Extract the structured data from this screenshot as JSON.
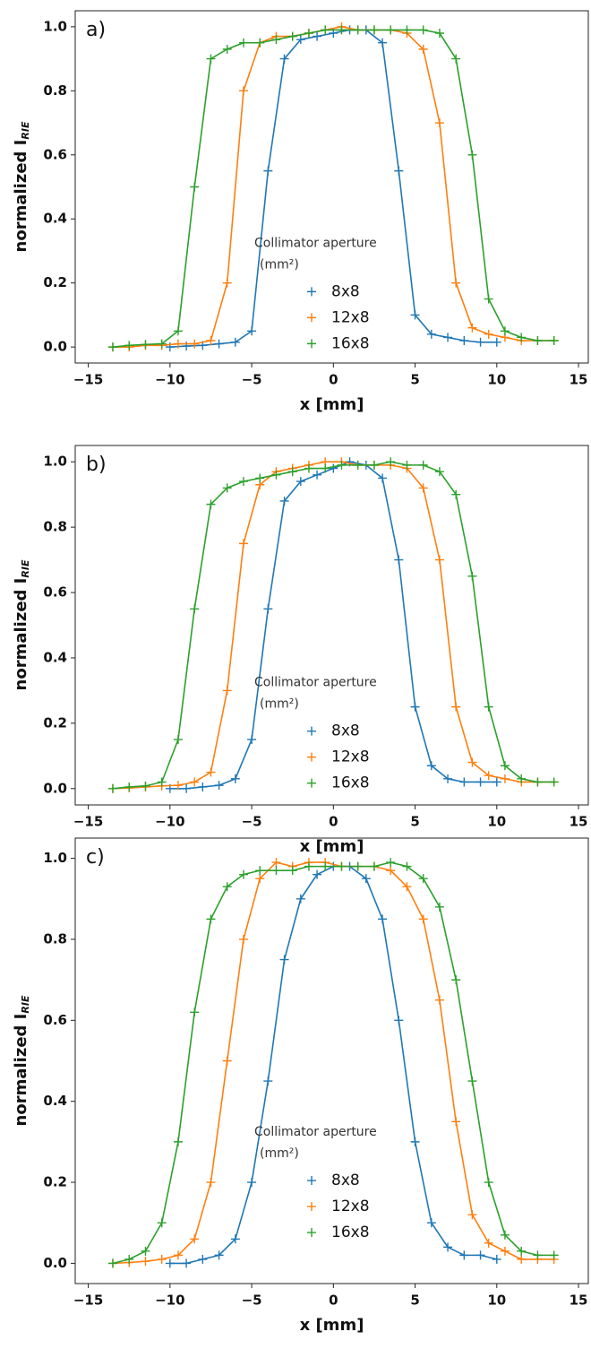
{
  "chart_data": [
    {
      "type": "line",
      "panel_label": "a)",
      "xlabel": "x [mm]",
      "ylabel": "normalized I",
      "ylabel_sub": "RIE",
      "legend_title": "Collimator aperture",
      "legend_unit": "(mm²)",
      "xlim": [
        -15.8,
        15.6
      ],
      "xticks": [
        {
          "value": -15,
          "label": "−15"
        },
        {
          "value": -10,
          "label": "−10"
        },
        {
          "value": -5,
          "label": "−5"
        },
        0,
        5,
        10,
        15
      ],
      "ylim": [
        -0.05,
        1.05
      ],
      "yticks": [
        {
          "value": 0,
          "label": "0.0"
        },
        {
          "value": 0.2,
          "label": "0.2"
        },
        {
          "value": 0.4,
          "label": "0.4"
        },
        {
          "value": 0.6,
          "label": "0.6"
        },
        {
          "value": 0.8,
          "label": "0.8"
        },
        {
          "value": 1,
          "label": "1.0"
        }
      ],
      "series": [
        {
          "name": "8x8",
          "color": "#1f77b4",
          "x": [
            -10,
            -9,
            -8,
            -7,
            -6,
            -5,
            -4,
            -3,
            -2,
            -1,
            0,
            1,
            2,
            3,
            4,
            5,
            6,
            7,
            8,
            9,
            10
          ],
          "values": [
            0,
            0.003,
            0.005,
            0.01,
            0.015,
            0.05,
            0.55,
            0.9,
            0.96,
            0.97,
            0.98,
            0.99,
            0.99,
            0.95,
            0.55,
            0.1,
            0.04,
            0.03,
            0.02,
            0.015,
            0.015
          ]
        },
        {
          "name": "12x8",
          "color": "#ff7f0e",
          "x": [
            -13.5,
            -12.5,
            -11.5,
            -10.5,
            -9.5,
            -8.5,
            -7.5,
            -6.5,
            -5.5,
            -4.5,
            -3.5,
            -2.5,
            -1.5,
            -0.5,
            0.5,
            1.5,
            2.5,
            3.5,
            4.5,
            5.5,
            6.5,
            7.5,
            8.5,
            9.5,
            10.5,
            11.5,
            12.5,
            13.5
          ],
          "values": [
            0,
            0,
            0.005,
            0.005,
            0.01,
            0.01,
            0.02,
            0.2,
            0.8,
            0.95,
            0.97,
            0.97,
            0.98,
            0.99,
            1.0,
            0.99,
            0.99,
            0.99,
            0.98,
            0.93,
            0.7,
            0.2,
            0.06,
            0.04,
            0.03,
            0.02,
            0.02,
            0.02
          ]
        },
        {
          "name": "16x8",
          "color": "#2ca02c",
          "x": [
            -13.5,
            -12.5,
            -11.5,
            -10.5,
            -9.5,
            -8.5,
            -7.5,
            -6.5,
            -5.5,
            -4.5,
            -3.5,
            -2.5,
            -1.5,
            -0.5,
            0.5,
            1.5,
            2.5,
            3.5,
            4.5,
            5.5,
            6.5,
            7.5,
            8.5,
            9.5,
            10.5,
            11.5,
            12.5,
            13.5
          ],
          "values": [
            0,
            0.005,
            0.008,
            0.01,
            0.05,
            0.5,
            0.9,
            0.93,
            0.95,
            0.95,
            0.96,
            0.97,
            0.98,
            0.99,
            0.99,
            0.99,
            0.99,
            0.99,
            0.99,
            0.99,
            0.98,
            0.9,
            0.6,
            0.15,
            0.05,
            0.03,
            0.02,
            0.02
          ]
        }
      ]
    },
    {
      "type": "line",
      "panel_label": "b)",
      "xlabel": "x [mm]",
      "ylabel": "normalized I",
      "ylabel_sub": "RIE",
      "legend_title": "Collimator aperture",
      "legend_unit": "(mm²)",
      "xlim": [
        -15.8,
        15.6
      ],
      "xticks": [
        {
          "value": -15,
          "label": "−15"
        },
        {
          "value": -10,
          "label": "−10"
        },
        {
          "value": -5,
          "label": "−5"
        },
        0,
        5,
        10,
        15
      ],
      "ylim": [
        -0.05,
        1.05
      ],
      "yticks": [
        {
          "value": 0,
          "label": "0.0"
        },
        {
          "value": 0.2,
          "label": "0.2"
        },
        {
          "value": 0.4,
          "label": "0.4"
        },
        {
          "value": 0.6,
          "label": "0.6"
        },
        {
          "value": 0.8,
          "label": "0.8"
        },
        {
          "value": 1,
          "label": "1.0"
        }
      ],
      "series": [
        {
          "name": "8x8",
          "color": "#1f77b4",
          "x": [
            -10,
            -9,
            -8,
            -7,
            -6,
            -5,
            -4,
            -3,
            -2,
            -1,
            0,
            1,
            2,
            3,
            4,
            5,
            6,
            7,
            8,
            9,
            10
          ],
          "values": [
            0,
            0,
            0.005,
            0.01,
            0.03,
            0.15,
            0.55,
            0.88,
            0.94,
            0.96,
            0.98,
            1.0,
            0.99,
            0.95,
            0.7,
            0.25,
            0.07,
            0.03,
            0.02,
            0.02,
            0.02
          ]
        },
        {
          "name": "12x8",
          "color": "#ff7f0e",
          "x": [
            -13.5,
            -12.5,
            -11.5,
            -10.5,
            -9.5,
            -8.5,
            -7.5,
            -6.5,
            -5.5,
            -4.5,
            -3.5,
            -2.5,
            -1.5,
            -0.5,
            0.5,
            1.5,
            2.5,
            3.5,
            4.5,
            5.5,
            6.5,
            7.5,
            8.5,
            9.5,
            10.5,
            11.5,
            12.5,
            13.5
          ],
          "values": [
            0,
            0.002,
            0.005,
            0.008,
            0.01,
            0.02,
            0.05,
            0.3,
            0.75,
            0.93,
            0.97,
            0.98,
            0.99,
            1.0,
            1.0,
            0.99,
            0.99,
            0.99,
            0.98,
            0.92,
            0.7,
            0.25,
            0.08,
            0.04,
            0.03,
            0.02,
            0.02,
            0.02
          ]
        },
        {
          "name": "16x8",
          "color": "#2ca02c",
          "x": [
            -13.5,
            -12.5,
            -11.5,
            -10.5,
            -9.5,
            -8.5,
            -7.5,
            -6.5,
            -5.5,
            -4.5,
            -3.5,
            -2.5,
            -1.5,
            -0.5,
            0.5,
            1.5,
            2.5,
            3.5,
            4.5,
            5.5,
            6.5,
            7.5,
            8.5,
            9.5,
            10.5,
            11.5,
            12.5,
            13.5
          ],
          "values": [
            0,
            0.005,
            0.008,
            0.02,
            0.15,
            0.55,
            0.87,
            0.92,
            0.94,
            0.95,
            0.96,
            0.97,
            0.98,
            0.98,
            0.99,
            0.99,
            0.99,
            1.0,
            0.99,
            0.99,
            0.97,
            0.9,
            0.65,
            0.25,
            0.07,
            0.03,
            0.02,
            0.02
          ]
        }
      ]
    },
    {
      "type": "line",
      "panel_label": "c)",
      "xlabel": "x [mm]",
      "ylabel": "normalized I",
      "ylabel_sub": "RIE",
      "legend_title": "Collimator aperture",
      "legend_unit": "(mm²)",
      "xlim": [
        -15.8,
        15.6
      ],
      "xticks": [
        {
          "value": -15,
          "label": "−15"
        },
        {
          "value": -10,
          "label": "−10"
        },
        {
          "value": -5,
          "label": "−5"
        },
        0,
        5,
        10,
        15
      ],
      "ylim": [
        -0.05,
        1.05
      ],
      "yticks": [
        {
          "value": 0,
          "label": "0.0"
        },
        {
          "value": 0.2,
          "label": "0.2"
        },
        {
          "value": 0.4,
          "label": "0.4"
        },
        {
          "value": 0.6,
          "label": "0.6"
        },
        {
          "value": 0.8,
          "label": "0.8"
        },
        {
          "value": 1,
          "label": "1.0"
        }
      ],
      "series": [
        {
          "name": "8x8",
          "color": "#1f77b4",
          "x": [
            -10,
            -9,
            -8,
            -7,
            -6,
            -5,
            -4,
            -3,
            -2,
            -1,
            0,
            1,
            2,
            3,
            4,
            5,
            6,
            7,
            8,
            9,
            10
          ],
          "values": [
            0,
            0,
            0.01,
            0.02,
            0.06,
            0.2,
            0.45,
            0.75,
            0.9,
            0.96,
            0.98,
            0.98,
            0.95,
            0.85,
            0.6,
            0.3,
            0.1,
            0.04,
            0.02,
            0.02,
            0.01
          ]
        },
        {
          "name": "12x8",
          "color": "#ff7f0e",
          "x": [
            -13.5,
            -12.5,
            -11.5,
            -10.5,
            -9.5,
            -8.5,
            -7.5,
            -6.5,
            -5.5,
            -4.5,
            -3.5,
            -2.5,
            -1.5,
            -0.5,
            0.5,
            1.5,
            2.5,
            3.5,
            4.5,
            5.5,
            6.5,
            7.5,
            8.5,
            9.5,
            10.5,
            11.5,
            12.5,
            13.5
          ],
          "values": [
            0,
            0.002,
            0.005,
            0.01,
            0.02,
            0.06,
            0.2,
            0.5,
            0.8,
            0.95,
            0.99,
            0.98,
            0.99,
            0.99,
            0.98,
            0.98,
            0.98,
            0.97,
            0.93,
            0.85,
            0.65,
            0.35,
            0.12,
            0.05,
            0.03,
            0.01,
            0.01,
            0.01
          ]
        },
        {
          "name": "16x8",
          "color": "#2ca02c",
          "x": [
            -13.5,
            -12.5,
            -11.5,
            -10.5,
            -9.5,
            -8.5,
            -7.5,
            -6.5,
            -5.5,
            -4.5,
            -3.5,
            -2.5,
            -1.5,
            -0.5,
            0.5,
            1.5,
            2.5,
            3.5,
            4.5,
            5.5,
            6.5,
            7.5,
            8.5,
            9.5,
            10.5,
            11.5,
            12.5,
            13.5
          ],
          "values": [
            0,
            0.01,
            0.03,
            0.1,
            0.3,
            0.62,
            0.85,
            0.93,
            0.96,
            0.97,
            0.97,
            0.97,
            0.98,
            0.98,
            0.98,
            0.98,
            0.98,
            0.99,
            0.98,
            0.95,
            0.88,
            0.7,
            0.45,
            0.2,
            0.07,
            0.03,
            0.02,
            0.02
          ]
        }
      ]
    }
  ]
}
